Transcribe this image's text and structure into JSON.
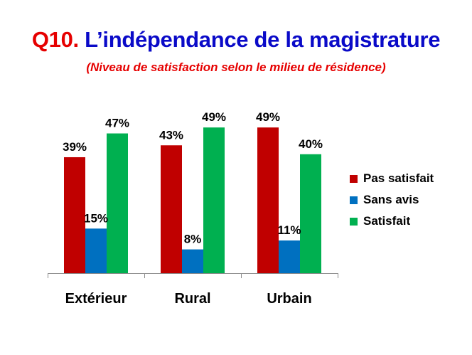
{
  "title": {
    "prefix": "Q10.",
    "text": "L’indépendance de la magistrature"
  },
  "subtitle": "(Niveau de satisfaction selon le milieu de résidence)",
  "colors": {
    "title_prefix": "#e60000",
    "title_text": "#0a0ac8",
    "subtitle": "#e60000"
  },
  "chart_data": {
    "type": "bar",
    "categories": [
      "Extérieur",
      "Rural",
      "Urbain"
    ],
    "series": [
      {
        "name": "Pas satisfait",
        "color": "#c00000",
        "values": [
          39,
          43,
          49
        ],
        "labels": [
          "39%",
          "43%",
          "49%"
        ]
      },
      {
        "name": "Sans avis",
        "color": "#0070c0",
        "values": [
          15,
          8,
          11
        ],
        "labels": [
          "15%",
          "8%",
          "11%"
        ]
      },
      {
        "name": "Satisfait",
        "color": "#00b050",
        "values": [
          47,
          49,
          40
        ],
        "labels": [
          "47%",
          "49%",
          "40%"
        ]
      }
    ],
    "ylim": [
      0,
      55
    ],
    "grid": false,
    "legend_position": "right",
    "xlabel": "",
    "ylabel": ""
  }
}
